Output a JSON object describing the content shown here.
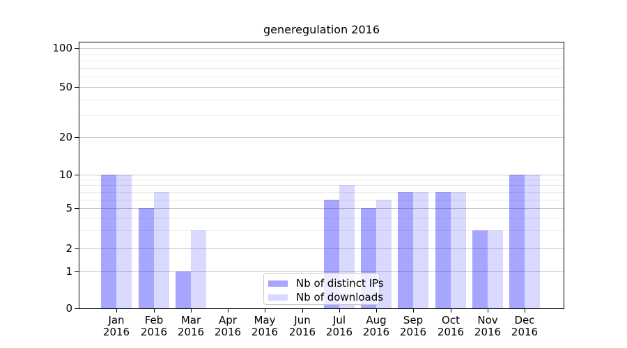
{
  "chart_data": {
    "type": "bar",
    "title": "generegulation 2016",
    "categories": [
      "Jan",
      "Feb",
      "Mar",
      "Apr",
      "May",
      "Jun",
      "Jul",
      "Aug",
      "Sep",
      "Oct",
      "Nov",
      "Dec"
    ],
    "x_tick_year": "2016",
    "series": [
      {
        "name": "Nb of distinct IPs",
        "color": "#0000ff",
        "alpha": 0.35,
        "values": [
          10,
          5,
          1,
          0,
          0,
          0,
          6,
          5,
          7,
          7,
          3,
          10
        ]
      },
      {
        "name": "Nb of downloads",
        "color": "#0000ff",
        "alpha": 0.15,
        "values": [
          10,
          7,
          3,
          0,
          0,
          0,
          8,
          6,
          7,
          7,
          3,
          10
        ]
      }
    ],
    "y_ticks": [
      0,
      1,
      2,
      5,
      10,
      20,
      50,
      100
    ],
    "y_minor_gridlines": [
      3,
      4,
      6,
      7,
      8,
      9,
      30,
      40,
      60,
      70,
      80,
      90
    ],
    "ylim": [
      0,
      100
    ],
    "scale": "log-like",
    "grid": "on",
    "legend_position": "lower-center"
  },
  "colors": {
    "background": "#ffffff",
    "axis": "#000000",
    "text": "#000000",
    "major_grid": "#c6c6c6",
    "minor_grid": "#ebebeb",
    "legend_border": "#cccccc",
    "legend_background_alpha": 0.8
  }
}
